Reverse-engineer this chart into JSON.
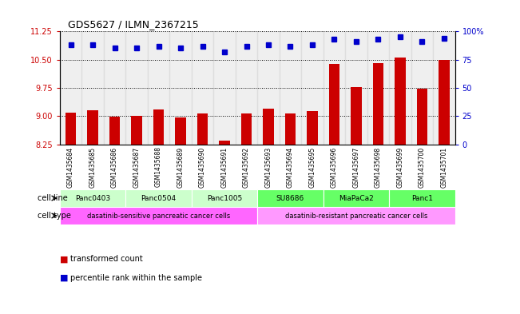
{
  "title": "GDS5627 / ILMN_2367215",
  "samples": [
    "GSM1435684",
    "GSM1435685",
    "GSM1435686",
    "GSM1435687",
    "GSM1435688",
    "GSM1435689",
    "GSM1435690",
    "GSM1435691",
    "GSM1435692",
    "GSM1435693",
    "GSM1435694",
    "GSM1435695",
    "GSM1435696",
    "GSM1435697",
    "GSM1435698",
    "GSM1435699",
    "GSM1435700",
    "GSM1435701"
  ],
  "transformed_count": [
    9.08,
    9.15,
    8.98,
    9.0,
    9.18,
    8.96,
    9.06,
    8.35,
    9.06,
    9.2,
    9.06,
    9.13,
    10.38,
    9.78,
    10.4,
    10.55,
    9.72,
    10.5
  ],
  "percentile_rank": [
    88,
    88,
    85,
    85,
    87,
    85,
    87,
    82,
    87,
    88,
    87,
    88,
    93,
    91,
    93,
    95,
    91,
    94
  ],
  "ylim_left": [
    8.25,
    11.25
  ],
  "yticks_left": [
    8.25,
    9.0,
    9.75,
    10.5,
    11.25
  ],
  "ylim_right": [
    0,
    100
  ],
  "yticks_right": [
    0,
    25,
    50,
    75,
    100
  ],
  "bar_color": "#cc0000",
  "dot_color": "#0000cc",
  "cell_lines": [
    {
      "name": "Panc0403",
      "start": 0,
      "end": 2,
      "color": "#ccffcc"
    },
    {
      "name": "Panc0504",
      "start": 3,
      "end": 5,
      "color": "#ccffcc"
    },
    {
      "name": "Panc1005",
      "start": 6,
      "end": 8,
      "color": "#ccffcc"
    },
    {
      "name": "SU8686",
      "start": 9,
      "end": 11,
      "color": "#66ff66"
    },
    {
      "name": "MiaPaCa2",
      "start": 12,
      "end": 14,
      "color": "#66ff66"
    },
    {
      "name": "Panc1",
      "start": 15,
      "end": 17,
      "color": "#66ff66"
    }
  ],
  "cell_types": [
    {
      "name": "dasatinib-sensitive pancreatic cancer cells",
      "start": 0,
      "end": 8,
      "color": "#ff66ff"
    },
    {
      "name": "dasatinib-resistant pancreatic cancer cells",
      "start": 9,
      "end": 17,
      "color": "#ff99ff"
    }
  ],
  "legend_items": [
    {
      "label": "transformed count",
      "color": "#cc0000"
    },
    {
      "label": "percentile rank within the sample",
      "color": "#0000cc"
    }
  ],
  "background_color": "#ffffff",
  "plot_bg_color": "#ffffff",
  "sample_bg_color": "#cccccc",
  "left_label_color": "#cc0000",
  "right_label_color": "#0000cc"
}
